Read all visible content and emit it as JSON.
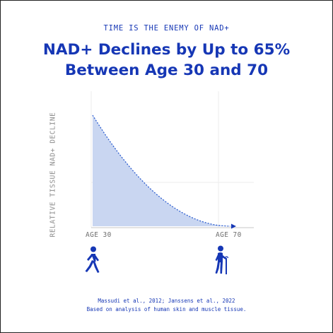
{
  "eyebrow": "TIME IS THE ENEMY OF NAD+",
  "headline": {
    "line1": "NAD+ Declines by Up to 65%",
    "line2": "Between Age 30 and 70"
  },
  "icons": {
    "left": "walking-person-icon",
    "right": "elderly-person-with-cane-icon"
  },
  "citation": {
    "line1": "Massudi et al., 2012; Janssens et al., 2022",
    "line2": "Based on analysis of human skin and muscle tissue."
  },
  "colors": {
    "accent": "#1637b5",
    "area_fill": "#c9d6f1",
    "curve": "#2f5fd0"
  },
  "chart_data": {
    "type": "area",
    "title": "",
    "xlabel": "",
    "ylabel": "RELATIVE TISSUE NAD+ DECLINE",
    "x_ticks": [
      "AGE 30",
      "AGE 70"
    ],
    "x": [
      30,
      34,
      38,
      42,
      46,
      50,
      54,
      58,
      62,
      66,
      70
    ],
    "y": [
      100,
      81,
      64,
      49,
      36,
      25,
      16,
      9,
      4,
      1,
      0
    ],
    "xlim": [
      30,
      70
    ],
    "ylim": [
      0,
      100
    ],
    "y_tick_labels": false,
    "grid": true,
    "curve_style": "dotted",
    "end_marker": "arrow"
  }
}
